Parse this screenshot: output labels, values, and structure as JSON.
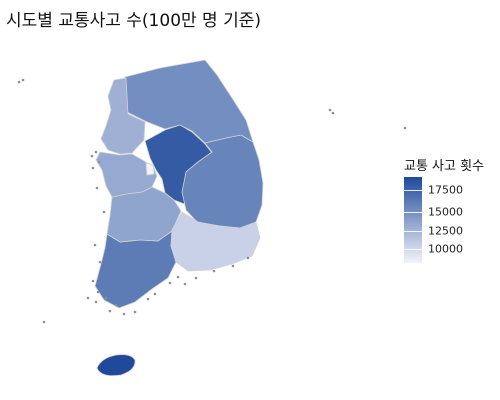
{
  "title": "시도별 교통사고 수(100만 명 기준)",
  "legend": {
    "title": "교통 사고 횟수",
    "ticks": [
      "17500",
      "15000",
      "12500",
      "10000"
    ],
    "colors": {
      "low": "#F3F4FB",
      "high": "#1F4A9A"
    }
  },
  "map_data": {
    "type": "choropleth",
    "value_range": [
      8500,
      18800
    ],
    "regions": [
      {
        "name": "jeju",
        "value": 18800
      },
      {
        "name": "chungbuk",
        "value": 17800
      },
      {
        "name": "jeonnam",
        "value": 15800
      },
      {
        "name": "gyeongbuk",
        "value": 15300
      },
      {
        "name": "gangwon",
        "value": 14700
      },
      {
        "name": "jeonbuk",
        "value": 13300
      },
      {
        "name": "chungnam",
        "value": 13000
      },
      {
        "name": "gyeonggi",
        "value": 12600
      },
      {
        "name": "gyeongnam",
        "value": 10600
      },
      {
        "name": "sejong",
        "value": 8500
      }
    ]
  }
}
